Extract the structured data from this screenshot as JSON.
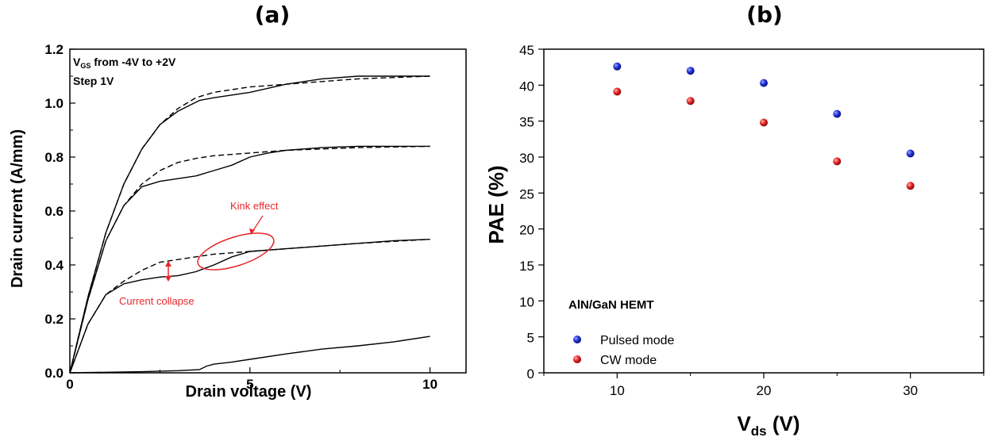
{
  "chart_data": [
    {
      "panel_label": "(a)",
      "type": "line",
      "xlabel": "Drain voltage (V)",
      "ylabel": "Drain current (A/mm)",
      "xlim": [
        0,
        11
      ],
      "ylim": [
        0,
        1.2
      ],
      "xticks": [
        "0",
        "5",
        "10"
      ],
      "yticks": [
        "0.0",
        "0.2",
        "0.4",
        "0.6",
        "0.8",
        "1.0",
        "1.2"
      ],
      "inset_text": {
        "line1_prefix": "V",
        "line1_sub": "GS",
        "line1_suffix": " from -4V to +2V",
        "line2": "Step 1V"
      },
      "annotations": {
        "kink": "Kink effect",
        "collapse": "Current collapse"
      },
      "series": [
        {
          "style": "solid",
          "x": [
            0,
            0.5,
            1,
            1.5,
            2,
            2.5,
            3,
            3.3,
            3.6,
            4,
            4.5,
            5,
            6,
            7,
            8,
            9,
            10
          ],
          "y": [
            0,
            0.28,
            0.52,
            0.7,
            0.83,
            0.92,
            0.97,
            0.99,
            1.01,
            1.02,
            1.03,
            1.04,
            1.07,
            1.09,
            1.1,
            1.1,
            1.1
          ]
        },
        {
          "style": "dashed",
          "x": [
            0,
            0.5,
            1,
            1.5,
            2,
            2.5,
            3,
            3.5,
            4,
            5,
            6,
            7,
            8,
            10
          ],
          "y": [
            0,
            0.28,
            0.52,
            0.7,
            0.83,
            0.92,
            0.98,
            1.02,
            1.04,
            1.06,
            1.07,
            1.08,
            1.09,
            1.1
          ]
        },
        {
          "style": "solid",
          "x": [
            0,
            0.5,
            1,
            1.5,
            2,
            2.5,
            3,
            3.5,
            4,
            4.5,
            5,
            5.5,
            6,
            7,
            8,
            9,
            10
          ],
          "y": [
            0,
            0.27,
            0.49,
            0.62,
            0.69,
            0.71,
            0.72,
            0.73,
            0.75,
            0.77,
            0.8,
            0.815,
            0.825,
            0.835,
            0.84,
            0.84,
            0.84
          ]
        },
        {
          "style": "dashed",
          "x": [
            0,
            0.5,
            1,
            1.5,
            2,
            2.5,
            3,
            3.5,
            4,
            5,
            6,
            8,
            10
          ],
          "y": [
            0,
            0.27,
            0.49,
            0.62,
            0.7,
            0.75,
            0.78,
            0.795,
            0.805,
            0.815,
            0.825,
            0.835,
            0.84
          ]
        },
        {
          "style": "solid",
          "x": [
            0,
            0.5,
            1,
            1.5,
            2,
            2.5,
            3,
            3.5,
            4,
            4.5,
            5,
            6,
            7,
            8,
            9,
            10
          ],
          "y": [
            0,
            0.18,
            0.29,
            0.33,
            0.345,
            0.355,
            0.36,
            0.375,
            0.4,
            0.43,
            0.45,
            0.46,
            0.47,
            0.48,
            0.49,
            0.495
          ]
        },
        {
          "style": "dashed",
          "x": [
            0,
            0.5,
            1,
            1.5,
            2,
            2.5,
            3,
            4,
            5,
            6,
            8,
            10
          ],
          "y": [
            0,
            0.18,
            0.29,
            0.34,
            0.38,
            0.41,
            0.42,
            0.44,
            0.45,
            0.46,
            0.48,
            0.495
          ]
        },
        {
          "style": "solid",
          "x": [
            0,
            1,
            2,
            3,
            3.6,
            3.8,
            4,
            4.5,
            5,
            6,
            7,
            8,
            9,
            10
          ],
          "y": [
            0,
            0.002,
            0.004,
            0.008,
            0.012,
            0.025,
            0.032,
            0.04,
            0.05,
            0.07,
            0.088,
            0.1,
            0.115,
            0.135
          ]
        }
      ]
    },
    {
      "panel_label": "(b)",
      "type": "scatter",
      "xlabel_main": "V",
      "xlabel_sub": "ds",
      "xlabel_tail": " (V)",
      "ylabel": "PAE (%)",
      "xlim": [
        5,
        35
      ],
      "ylim": [
        0,
        45
      ],
      "xticks": [
        "10",
        "20",
        "30"
      ],
      "yticks": [
        "0",
        "5",
        "10",
        "15",
        "20",
        "25",
        "30",
        "35",
        "40",
        "45"
      ],
      "legend_title": "AlN/GaN HEMT",
      "legend_position": "bottom-left",
      "series": [
        {
          "name": "Pulsed mode",
          "color": "#1f2fd6",
          "x": [
            10,
            15,
            20,
            25,
            30
          ],
          "y": [
            42.6,
            42.0,
            40.3,
            36.0,
            30.5
          ]
        },
        {
          "name": "CW mode",
          "color": "#e52020",
          "x": [
            10,
            15,
            20,
            25,
            30
          ],
          "y": [
            39.1,
            37.8,
            34.8,
            29.4,
            26.0
          ]
        }
      ]
    }
  ]
}
